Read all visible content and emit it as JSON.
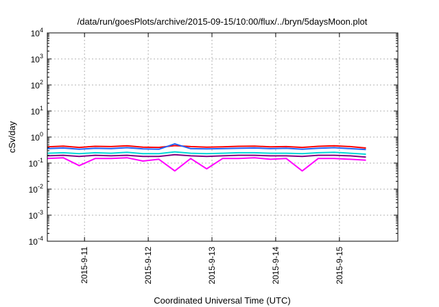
{
  "chart_data": {
    "type": "line",
    "title": "/data/run/goesPlots/archive/2015-09-15/10:00/flux/../bryn/5daysMoon.plot",
    "xlabel": "Coordinated Universal Time (UTC)",
    "ylabel": "cSv/day",
    "yscale": "log",
    "ylim": [
      0.0001,
      10000
    ],
    "xlim": [
      "2015-09-10 10:00",
      "2015-09-15 10:00"
    ],
    "grid": true,
    "legend": "none",
    "y_ticks": [
      {
        "value": 0.0001,
        "base": "10",
        "exp": "-4"
      },
      {
        "value": 0.001,
        "base": "10",
        "exp": "-3"
      },
      {
        "value": 0.01,
        "base": "10",
        "exp": "-2"
      },
      {
        "value": 0.1,
        "base": "10",
        "exp": "-1"
      },
      {
        "value": 1,
        "base": "10",
        "exp": "0"
      },
      {
        "value": 10,
        "base": "10",
        "exp": "1"
      },
      {
        "value": 100,
        "base": "10",
        "exp": "2"
      },
      {
        "value": 1000,
        "base": "10",
        "exp": "3"
      },
      {
        "value": 10000,
        "base": "10",
        "exp": "4"
      }
    ],
    "x_ticks": [
      "2015-9-11",
      "2015-9-12",
      "2015-9-13",
      "2015-9-14",
      "2015-9-15"
    ],
    "x": [
      "2015-09-10 10:00",
      "2015-09-10 16:00",
      "2015-09-10 22:00",
      "2015-09-11 04:00",
      "2015-09-11 10:00",
      "2015-09-11 16:00",
      "2015-09-11 22:00",
      "2015-09-12 04:00",
      "2015-09-12 10:00",
      "2015-09-12 16:00",
      "2015-09-12 22:00",
      "2015-09-13 04:00",
      "2015-09-13 10:00",
      "2015-09-13 16:00",
      "2015-09-13 22:00",
      "2015-09-14 04:00",
      "2015-09-14 10:00",
      "2015-09-14 16:00",
      "2015-09-14 22:00",
      "2015-09-15 04:00",
      "2015-09-15 10:00"
    ],
    "series": [
      {
        "color": "#ff0000",
        "values": [
          0.42,
          0.45,
          0.4,
          0.44,
          0.43,
          0.46,
          0.41,
          0.4,
          0.47,
          0.43,
          0.41,
          0.42,
          0.44,
          0.45,
          0.42,
          0.43,
          0.4,
          0.44,
          0.46,
          0.43,
          0.38
        ]
      },
      {
        "color": "#1e64ff",
        "values": [
          0.36,
          0.38,
          0.34,
          0.37,
          0.36,
          0.39,
          0.35,
          0.34,
          0.55,
          0.36,
          0.35,
          0.36,
          0.37,
          0.38,
          0.36,
          0.37,
          0.34,
          0.37,
          0.39,
          0.36,
          0.33
        ]
      },
      {
        "color": "#00d8d8",
        "values": [
          0.24,
          0.25,
          0.23,
          0.25,
          0.24,
          0.26,
          0.23,
          0.23,
          0.27,
          0.24,
          0.23,
          0.24,
          0.25,
          0.25,
          0.24,
          0.24,
          0.23,
          0.25,
          0.26,
          0.24,
          0.22
        ]
      },
      {
        "color": "#800080",
        "values": [
          0.19,
          0.2,
          0.18,
          0.2,
          0.19,
          0.2,
          0.18,
          0.18,
          0.21,
          0.19,
          0.18,
          0.19,
          0.2,
          0.2,
          0.19,
          0.19,
          0.18,
          0.2,
          0.2,
          0.19,
          0.17
        ]
      },
      {
        "color": "#ff00ff",
        "values": [
          0.15,
          0.16,
          0.08,
          0.15,
          0.15,
          0.16,
          0.12,
          0.14,
          0.05,
          0.15,
          0.06,
          0.15,
          0.15,
          0.16,
          0.14,
          0.15,
          0.05,
          0.15,
          0.15,
          0.14,
          0.13
        ]
      }
    ]
  }
}
